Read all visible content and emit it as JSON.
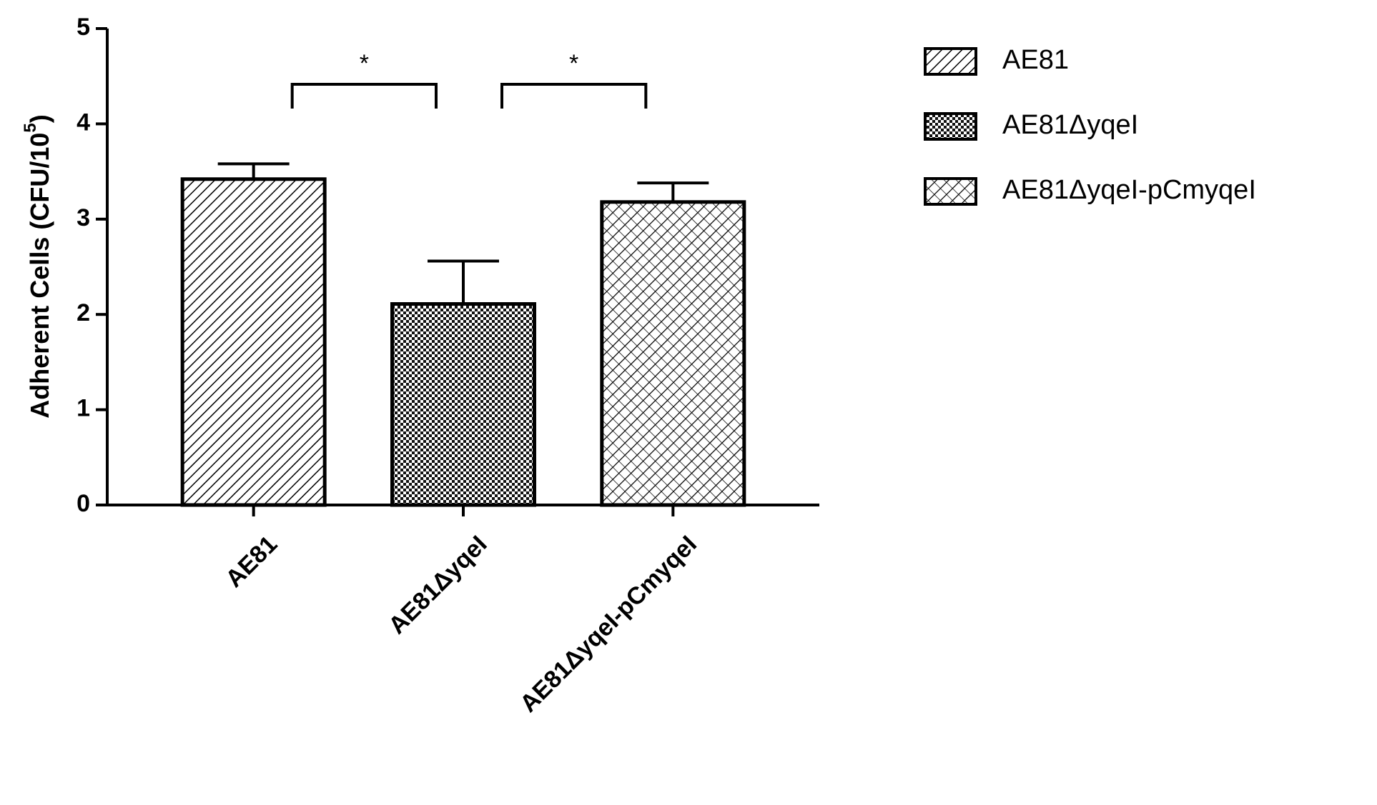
{
  "chart_data": {
    "type": "bar",
    "y_label": {
      "text": "Adherent Cells (CFU/10",
      "superscript": "5",
      "end": ")"
    },
    "categories": [
      "AE81",
      "AE81ΔyqeI",
      "AE81ΔyqeI-pCmyqeI"
    ],
    "values": [
      3.42,
      2.11,
      3.18
    ],
    "errors": [
      0.16,
      0.45,
      0.2
    ],
    "patterns": [
      "diagonal",
      "checker",
      "crosshatch"
    ],
    "color": "#000000",
    "ylim": [
      0,
      5
    ],
    "yticks": [
      0,
      1,
      2,
      3,
      4,
      5
    ],
    "annotations": [
      "*",
      "*"
    ],
    "legend": "top-right"
  }
}
